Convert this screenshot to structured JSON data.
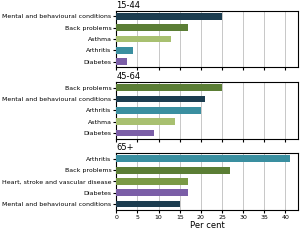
{
  "chart_data": [
    {
      "type": "bar",
      "orientation": "horizontal",
      "title": "15-44",
      "categories": [
        "Mental and behavioural conditions",
        "Back problems",
        "Asthma",
        "Arthritis",
        "Diabetes"
      ],
      "values": [
        25,
        17,
        13,
        4,
        2.5
      ],
      "colors": [
        "#1c3d50",
        "#5b7e35",
        "#a8c070",
        "#3a8fa0",
        "#7b5ea7"
      ],
      "xlim": [
        0,
        43
      ],
      "xticks": [
        0,
        5,
        10,
        15,
        20,
        25,
        30,
        35,
        40
      ],
      "grid": true,
      "tick_labels": "y"
    },
    {
      "type": "bar",
      "orientation": "horizontal",
      "title": "45-64",
      "categories": [
        "Back problems",
        "Mental and behavioural conditions",
        "Arthritis",
        "Asthma",
        "Diabetes"
      ],
      "values": [
        25,
        21,
        20,
        14,
        9
      ],
      "colors": [
        "#5b7e35",
        "#1c3d50",
        "#3a8fa0",
        "#a8c070",
        "#7b5ea7"
      ],
      "xlim": [
        0,
        43
      ],
      "xticks": [
        0,
        5,
        10,
        15,
        20,
        25,
        30,
        35,
        40
      ],
      "grid": true,
      "tick_labels": "y"
    },
    {
      "type": "bar",
      "orientation": "horizontal",
      "title": "65+",
      "categories": [
        "Arthritis",
        "Back problems",
        "Heart, stroke and vascular disease",
        "Diabetes",
        "Mental and behavioural conditions"
      ],
      "values": [
        41,
        27,
        17,
        17,
        15
      ],
      "colors": [
        "#3a8fa0",
        "#5b7e35",
        "#7a9a45",
        "#7b5ea7",
        "#1c3d50"
      ],
      "xlim": [
        0,
        43
      ],
      "xticks": [
        0,
        5,
        10,
        15,
        20,
        25,
        30,
        35,
        40
      ],
      "grid": true,
      "x_label": "Per cent"
    }
  ]
}
